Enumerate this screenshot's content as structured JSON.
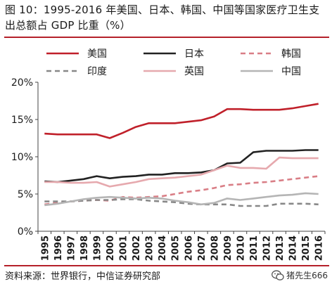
{
  "title": "图 10：1995-2016 年美国、日本、韩国、中国等国家医疗卫生支出总额占 GDP 比重（%）",
  "source": "资料来源：世界银行，中信证券研究部",
  "watermark": "猪先生666",
  "colors": {
    "accent_rule": "#b5202a",
    "axis": "#444444"
  },
  "chart_data": {
    "type": "line",
    "title": "",
    "xlabel": "",
    "ylabel": "",
    "x": [
      "1995",
      "1996",
      "1997",
      "1998",
      "1999",
      "2000",
      "2001",
      "2002",
      "2003",
      "2004",
      "2005",
      "2006",
      "2007",
      "2008",
      "2009",
      "2010",
      "2011",
      "2012",
      "2013",
      "2014",
      "2015",
      "2016"
    ],
    "ylim": [
      0,
      20
    ],
    "yticks": [
      0,
      5,
      10,
      15,
      20
    ],
    "ytick_labels": [
      "0%",
      "5%",
      "10%",
      "15%",
      "20%"
    ],
    "legend_position": "top",
    "grid": false,
    "series": [
      {
        "name": "美国",
        "color": "#c0202a",
        "dash": "solid",
        "values": [
          13.1,
          13.0,
          13.0,
          13.0,
          13.0,
          12.5,
          13.2,
          14.0,
          14.5,
          14.5,
          14.5,
          14.7,
          14.9,
          15.4,
          16.4,
          16.4,
          16.3,
          16.3,
          16.3,
          16.5,
          16.8,
          17.1
        ]
      },
      {
        "name": "日本",
        "color": "#222222",
        "dash": "solid",
        "values": [
          6.7,
          6.6,
          6.8,
          7.0,
          7.4,
          7.1,
          7.3,
          7.4,
          7.6,
          7.6,
          7.8,
          7.8,
          7.9,
          8.2,
          9.1,
          9.2,
          10.6,
          10.8,
          10.8,
          10.8,
          10.9,
          10.9
        ]
      },
      {
        "name": "韩国",
        "color": "#d97e86",
        "dash": "dashed",
        "values": [
          3.6,
          3.8,
          4.0,
          4.1,
          4.2,
          4.1,
          4.6,
          4.5,
          4.6,
          4.7,
          5.0,
          5.3,
          5.5,
          5.8,
          6.2,
          6.3,
          6.5,
          6.6,
          6.8,
          7.0,
          7.2,
          7.4
        ]
      },
      {
        "name": "印度",
        "color": "#888888",
        "dash": "dashed",
        "values": [
          4.0,
          4.0,
          4.0,
          4.1,
          4.2,
          4.2,
          4.3,
          4.3,
          4.1,
          4.0,
          3.9,
          3.7,
          3.6,
          3.6,
          3.6,
          3.4,
          3.4,
          3.4,
          3.7,
          3.7,
          3.7,
          3.6
        ]
      },
      {
        "name": "英国",
        "color": "#e6a9ae",
        "dash": "solid",
        "values": [
          6.6,
          6.6,
          6.5,
          6.5,
          6.6,
          6.0,
          6.3,
          6.6,
          7.0,
          7.1,
          7.2,
          7.4,
          7.6,
          8.2,
          8.8,
          8.5,
          8.5,
          8.4,
          9.9,
          9.8,
          9.8,
          9.8
        ]
      },
      {
        "name": "中国",
        "color": "#b5b5b5",
        "dash": "solid",
        "values": [
          3.5,
          3.7,
          4.0,
          4.3,
          4.5,
          4.6,
          4.5,
          4.4,
          4.5,
          4.4,
          4.1,
          3.9,
          3.6,
          3.8,
          4.4,
          4.2,
          4.4,
          4.6,
          4.8,
          4.9,
          5.1,
          5.0
        ]
      }
    ]
  }
}
